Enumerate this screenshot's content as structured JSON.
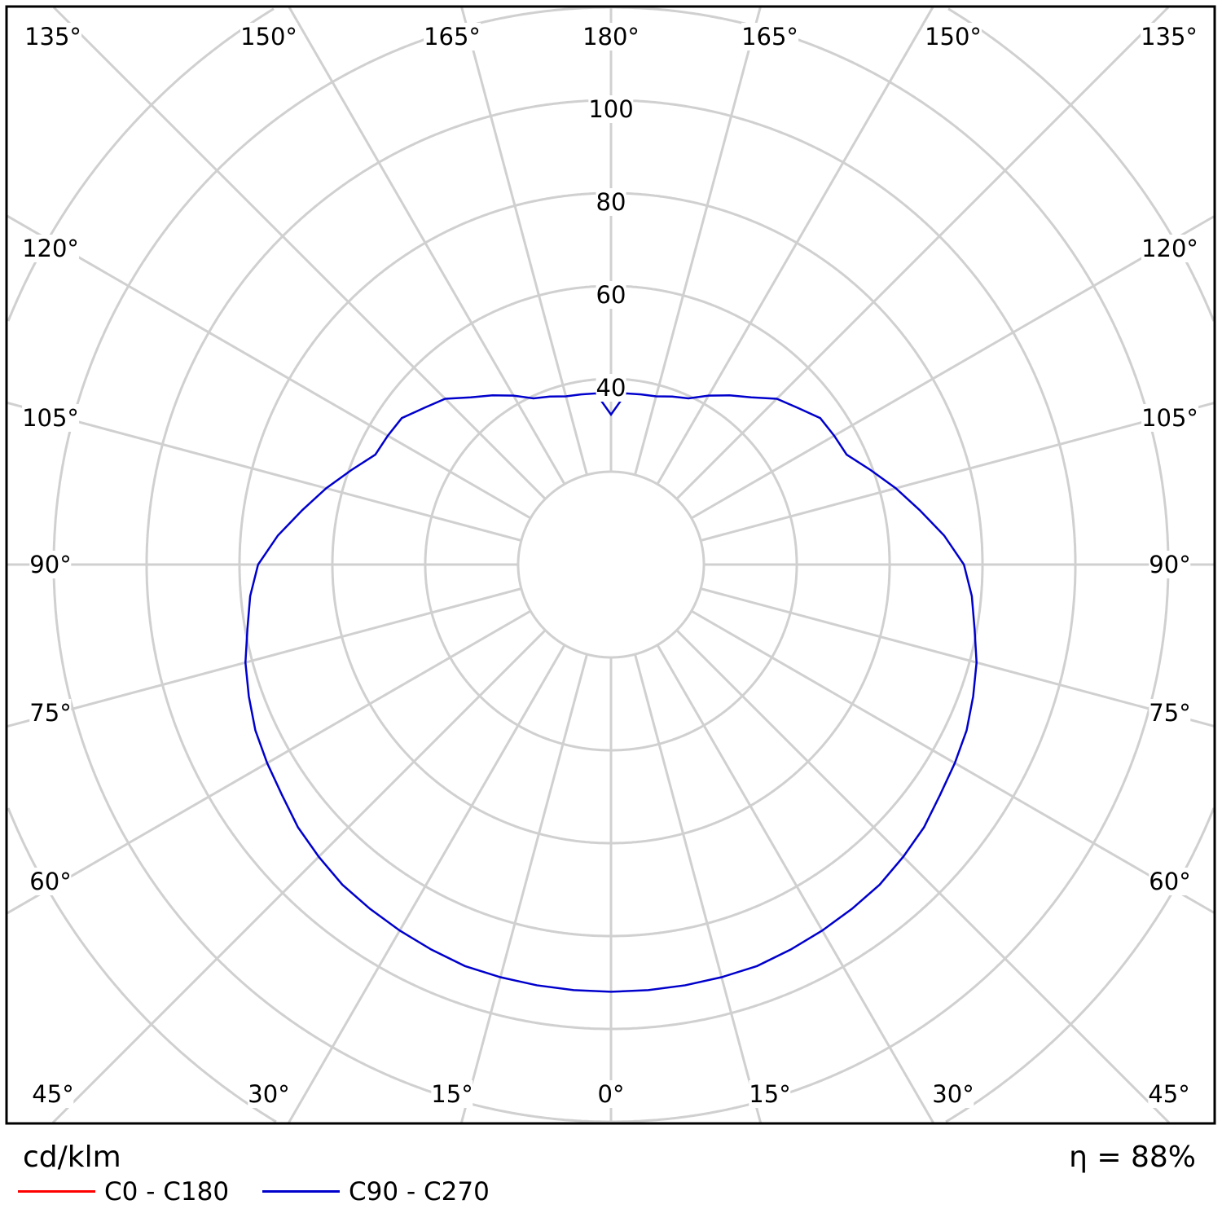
{
  "chart_data": {
    "type": "polar",
    "unit_label": "cd/klm",
    "efficiency_label": "η = 88%",
    "radial_ticks": [
      "40",
      "60",
      "80",
      "100"
    ],
    "radial_grid": [
      20,
      40,
      60,
      80,
      100,
      120,
      140
    ],
    "angle_labels": {
      "top": [
        "135°",
        "150°",
        "165°",
        "180°",
        "165°",
        "150°",
        "135°"
      ],
      "left": [
        "120°",
        "105°",
        "90°",
        "75°",
        "60°"
      ],
      "right": [
        "120°",
        "105°",
        "90°",
        "75°",
        "60°"
      ],
      "bottom": [
        "45°",
        "30°",
        "15°",
        "0°",
        "15°",
        "30°",
        "45°"
      ]
    },
    "grid": true,
    "legend_position": "bottom-left",
    "series": [
      {
        "name": "C0 - C180",
        "color": "#ff0000",
        "gamma": [],
        "values": []
      },
      {
        "name": "C90 - C270",
        "color": "#0000cc",
        "gamma": [
          0,
          5,
          10,
          15,
          20,
          25,
          30,
          35,
          40,
          45,
          50,
          55,
          60,
          65,
          70,
          75,
          80,
          85,
          90,
          95,
          100,
          105,
          110,
          115,
          120,
          125,
          130,
          135,
          140,
          145,
          150,
          155,
          160,
          165,
          170,
          175,
          180
        ],
        "values": [
          92,
          92,
          92,
          92,
          92,
          91.5,
          91,
          90.5,
          90,
          89,
          88,
          86.5,
          85.5,
          84.5,
          83,
          81.5,
          79.5,
          78,
          76,
          72,
          67.5,
          63.5,
          59.5,
          56,
          55.5,
          55,
          52.5,
          50.5,
          47,
          44.5,
          42,
          39.5,
          38.5,
          37.5,
          37.2,
          37,
          32.3
        ]
      }
    ]
  }
}
